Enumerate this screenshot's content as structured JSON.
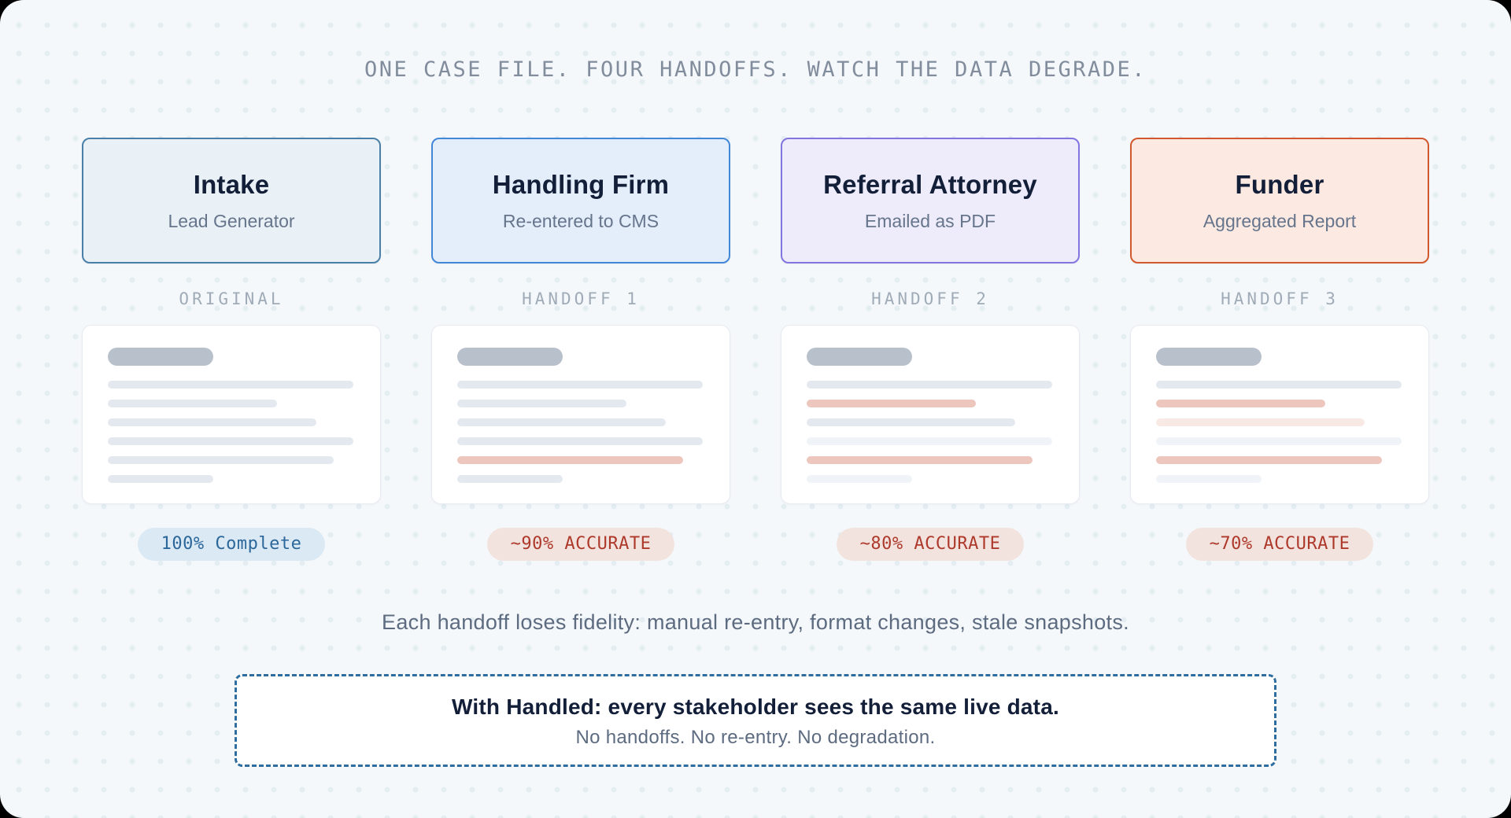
{
  "palette": {
    "page_bg": "#f5f8fa",
    "dot_color": "#e3edf2",
    "doc_title_bar": "#b8c0cc",
    "line_colors": {
      "gray": "#e4e9f0",
      "red": "#edc6be",
      "faded_gray": "#f0f4f8",
      "faded_red": "#f9e9e5"
    }
  },
  "header": {
    "title": "ONE CASE FILE. FOUR HANDOFFS. WATCH THE DATA DEGRADE."
  },
  "columns": [
    {
      "name": "Intake",
      "subtitle": "Lead Generator",
      "accent_color": "#4a80a8",
      "card_bg": "#e9f1f6",
      "stage_label": "ORIGINAL",
      "badge": {
        "label": "100% Complete",
        "fg": "#2b679a",
        "bg": "#dbe9f4"
      },
      "doc_lines": [
        {
          "width_pct": 100,
          "type": "gray"
        },
        {
          "width_pct": 69,
          "type": "gray"
        },
        {
          "width_pct": 85,
          "type": "gray"
        },
        {
          "width_pct": 100,
          "type": "gray"
        },
        {
          "width_pct": 92,
          "type": "gray"
        },
        {
          "width_pct": 43,
          "type": "gray"
        }
      ]
    },
    {
      "name": "Handling Firm",
      "subtitle": "Re-entered to CMS",
      "accent_color": "#4387d7",
      "card_bg": "#e4eefb",
      "stage_label": "HANDOFF 1",
      "badge": {
        "label": "~90% ACCURATE",
        "fg": "#ad392b",
        "bg": "#f3e3df"
      },
      "doc_lines": [
        {
          "width_pct": 100,
          "type": "gray"
        },
        {
          "width_pct": 69,
          "type": "gray"
        },
        {
          "width_pct": 85,
          "type": "gray"
        },
        {
          "width_pct": 100,
          "type": "gray"
        },
        {
          "width_pct": 92,
          "type": "red"
        },
        {
          "width_pct": 43,
          "type": "gray"
        }
      ]
    },
    {
      "name": "Referral Attorney",
      "subtitle": "Emailed as PDF",
      "accent_color": "#8375e0",
      "card_bg": "#eeecfa",
      "stage_label": "HANDOFF 2",
      "badge": {
        "label": "~80% ACCURATE",
        "fg": "#ad392b",
        "bg": "#f3e3df"
      },
      "doc_lines": [
        {
          "width_pct": 100,
          "type": "gray"
        },
        {
          "width_pct": 69,
          "type": "red"
        },
        {
          "width_pct": 85,
          "type": "gray"
        },
        {
          "width_pct": 100,
          "type": "faded_gray"
        },
        {
          "width_pct": 92,
          "type": "red"
        },
        {
          "width_pct": 43,
          "type": "faded_gray"
        }
      ]
    },
    {
      "name": "Funder",
      "subtitle": "Aggregated Report",
      "accent_color": "#d2592e",
      "card_bg": "#fbe9e2",
      "stage_label": "HANDOFF 3",
      "badge": {
        "label": "~70% ACCURATE",
        "fg": "#ad392b",
        "bg": "#f3e3df"
      },
      "doc_lines": [
        {
          "width_pct": 100,
          "type": "gray"
        },
        {
          "width_pct": 69,
          "type": "red"
        },
        {
          "width_pct": 85,
          "type": "faded_red"
        },
        {
          "width_pct": 100,
          "type": "faded_gray"
        },
        {
          "width_pct": 92,
          "type": "red"
        },
        {
          "width_pct": 43,
          "type": "faded_gray"
        }
      ]
    }
  ],
  "caption": "Each handoff loses fidelity: manual re-entry, format changes, stale snapshots.",
  "callout": {
    "title": "With Handled: every stakeholder sees the same live data.",
    "subtitle": "No handoffs. No re-entry. No degradation.",
    "border_color": "#2e6d9e"
  }
}
